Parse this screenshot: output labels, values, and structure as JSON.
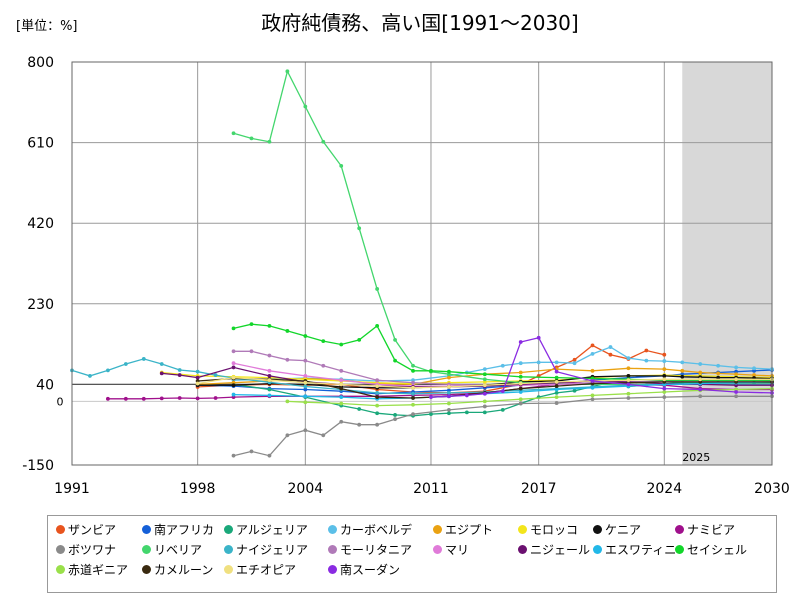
{
  "chart_data": {
    "type": "line",
    "title": "政府純債務、高い国[1991～2030]",
    "unit_label": "[単位：%]",
    "x_ticks": [
      "1991",
      "1998",
      "2004",
      "2011",
      "2017",
      "2024",
      "2030"
    ],
    "y_ticks": [
      "800",
      "610",
      "420",
      "230",
      "40",
      "-150"
    ],
    "zero_label": "0",
    "xlim": [
      1991,
      2030
    ],
    "ylim": [
      -150,
      800
    ],
    "reference_line_y": 40,
    "forecast_start": 2025,
    "forecast_label": "2025",
    "grid": true,
    "legend_position": "bottom",
    "series": [
      {
        "name": "ザンビア",
        "color": "#e8541e",
        "x": [
          1998,
          2000,
          2002,
          2004,
          2006,
          2008,
          2010,
          2012,
          2014,
          2016,
          2017,
          2018,
          2019,
          2020,
          2021,
          2022,
          2023,
          2024
        ],
        "values": [
          34,
          38,
          40,
          38,
          40,
          28,
          22,
          20,
          24,
          40,
          60,
          80,
          98,
          132,
          110,
          100,
          120,
          110
        ]
      },
      {
        "name": "南アフリカ",
        "color": "#1560d8",
        "x": [
          1998,
          2000,
          2002,
          2004,
          2006,
          2008,
          2010,
          2012,
          2014,
          2016,
          2018,
          2020,
          2022,
          2024,
          2025,
          2026,
          2027,
          2028,
          2029,
          2030
        ],
        "values": [
          38,
          36,
          30,
          28,
          24,
          18,
          22,
          26,
          32,
          38,
          42,
          50,
          56,
          60,
          64,
          66,
          68,
          70,
          72,
          74
        ]
      },
      {
        "name": "アルジェリア",
        "color": "#1aa87a",
        "x": [
          2000,
          2002,
          2004,
          2006,
          2007,
          2008,
          2009,
          2010,
          2011,
          2012,
          2013,
          2014,
          2015,
          2016,
          2017,
          2018,
          2019,
          2020,
          2021,
          2022,
          2023,
          2024,
          2025,
          2026,
          2027,
          2028,
          2029,
          2030
        ],
        "values": [
          40,
          28,
          10,
          -10,
          -18,
          -28,
          -32,
          -34,
          -30,
          -28,
          -26,
          -26,
          -20,
          -5,
          10,
          20,
          25,
          35,
          45,
          35,
          38,
          42,
          44,
          44,
          44,
          44,
          44,
          44
        ]
      },
      {
        "name": "カーボベルデ",
        "color": "#5bbfe8",
        "x": [
          2000,
          2002,
          2004,
          2006,
          2008,
          2010,
          2012,
          2013,
          2014,
          2015,
          2016,
          2017,
          2018,
          2019,
          2020,
          2021,
          2022,
          2023,
          2024,
          2025,
          2026,
          2027,
          2028,
          2029,
          2030
        ],
        "values": [
          50,
          52,
          55,
          52,
          48,
          50,
          60,
          68,
          76,
          84,
          90,
          92,
          92,
          90,
          112,
          128,
          102,
          96,
          95,
          92,
          88,
          84,
          80,
          78,
          76
        ]
      },
      {
        "name": "エジプト",
        "color": "#eaa212",
        "x": [
          1998,
          2000,
          2002,
          2004,
          2006,
          2008,
          2010,
          2012,
          2014,
          2016,
          2018,
          2020,
          2022,
          2024,
          2025,
          2026,
          2027,
          2028,
          2029,
          2030
        ],
        "values": [
          40,
          44,
          48,
          54,
          50,
          42,
          40,
          56,
          64,
          68,
          76,
          72,
          78,
          76,
          72,
          68,
          66,
          64,
          62,
          60
        ]
      },
      {
        "name": "モロッコ",
        "color": "#f3e51c",
        "x": [
          1996,
          1998,
          2000,
          2002,
          2004,
          2006,
          2008,
          2010,
          2012,
          2014,
          2016,
          2018,
          2020,
          2022,
          2024,
          2026,
          2028,
          2030
        ],
        "values": [
          68,
          60,
          58,
          56,
          52,
          48,
          44,
          42,
          44,
          46,
          48,
          50,
          56,
          60,
          62,
          60,
          58,
          56
        ]
      },
      {
        "name": "ケニア",
        "color": "#111111",
        "x": [
          1998,
          2000,
          2002,
          2004,
          2006,
          2008,
          2010,
          2012,
          2014,
          2016,
          2018,
          2020,
          2022,
          2024,
          2025,
          2026,
          2027,
          2028,
          2029,
          2030
        ],
        "values": [
          38,
          38,
          42,
          40,
          34,
          32,
          32,
          36,
          38,
          46,
          48,
          58,
          60,
          60,
          58,
          57,
          56,
          56,
          55,
          54
        ]
      },
      {
        "name": "ナミビア",
        "color": "#a0108c",
        "x": [
          1993,
          1994,
          1995,
          1996,
          1997,
          1998,
          1999,
          2000,
          2002,
          2004,
          2006,
          2008,
          2010,
          2012,
          2014,
          2016,
          2018,
          2020,
          2022,
          2024,
          2026,
          2028,
          2030
        ],
        "values": [
          6,
          6,
          6,
          7,
          8,
          7,
          8,
          10,
          12,
          12,
          12,
          12,
          14,
          16,
          20,
          30,
          40,
          50,
          40,
          38,
          30,
          28,
          28
        ]
      },
      {
        "name": "ボツワナ",
        "color": "#8a8a8a",
        "x": [
          2000,
          2001,
          2002,
          2003,
          2004,
          2005,
          2006,
          2007,
          2008,
          2009,
          2010,
          2012,
          2014,
          2016,
          2018,
          2020,
          2022,
          2024,
          2026,
          2028,
          2030
        ],
        "values": [
          -128,
          -118,
          -128,
          -80,
          -68,
          -80,
          -48,
          -55,
          -55,
          -42,
          -30,
          -20,
          -12,
          -5,
          -4,
          5,
          8,
          10,
          12,
          12,
          12
        ]
      },
      {
        "name": "リベリア",
        "color": "#43d66d",
        "x": [
          2000,
          2001,
          2002,
          2003,
          2004,
          2005,
          2006,
          2007,
          2008,
          2009,
          2010,
          2011,
          2012,
          2014,
          2016,
          2018,
          2020,
          2022,
          2024,
          2026,
          2028,
          2030
        ],
        "values": [
          632,
          620,
          612,
          778,
          695,
          612,
          555,
          408,
          265,
          145,
          84,
          70,
          64,
          52,
          44,
          42,
          40,
          40,
          40,
          40,
          40,
          40
        ]
      },
      {
        "name": "ナイジェリア",
        "color": "#3bb4c8",
        "x": [
          1991,
          1992,
          1993,
          1994,
          1995,
          1996,
          1997,
          1998,
          1999,
          2000,
          2002,
          2004,
          2006,
          2008,
          2010,
          2012,
          2014,
          2016,
          2018,
          2020,
          2022,
          2024,
          2026,
          2028,
          2030
        ],
        "values": [
          73,
          60,
          73,
          88,
          100,
          88,
          74,
          70,
          62,
          55,
          45,
          35,
          28,
          20,
          18,
          20,
          22,
          26,
          30,
          34,
          38,
          40,
          40,
          40,
          40
        ]
      },
      {
        "name": "モーリタニア",
        "color": "#b07ab8",
        "x": [
          2000,
          2001,
          2002,
          2003,
          2004,
          2005,
          2006,
          2008,
          2010,
          2012,
          2014,
          2016,
          2018,
          2020,
          2022,
          2024,
          2026,
          2028,
          2030
        ],
        "values": [
          118,
          118,
          108,
          98,
          96,
          84,
          72,
          50,
          44,
          40,
          38,
          38,
          40,
          44,
          46,
          48,
          50,
          50,
          50
        ]
      },
      {
        "name": "マリ",
        "color": "#e07bd9",
        "x": [
          2000,
          2002,
          2004,
          2006,
          2008,
          2010,
          2012,
          2014,
          2016,
          2018,
          2020,
          2022,
          2024,
          2026,
          2028,
          2030
        ],
        "values": [
          90,
          72,
          60,
          50,
          40,
          36,
          36,
          38,
          38,
          40,
          42,
          44,
          46,
          46,
          46,
          46
        ]
      },
      {
        "name": "ニジェール",
        "color": "#6b1070",
        "x": [
          1996,
          1997,
          1998,
          2000,
          2002,
          2004,
          2006,
          2008,
          2010,
          2012,
          2014,
          2016,
          2018,
          2020,
          2022,
          2024,
          2026,
          2028,
          2030
        ],
        "values": [
          66,
          62,
          56,
          80,
          60,
          46,
          40,
          36,
          34,
          34,
          36,
          40,
          44,
          48,
          46,
          42,
          40,
          38,
          38
        ]
      },
      {
        "name": "エスワティニ",
        "color": "#22b8e8",
        "x": [
          2000,
          2002,
          2004,
          2006,
          2008,
          2010,
          2012,
          2014,
          2016,
          2018,
          2020,
          2022,
          2024,
          2026,
          2028,
          2030
        ],
        "values": [
          16,
          14,
          12,
          10,
          6,
          8,
          12,
          18,
          22,
          28,
          32,
          36,
          40,
          42,
          44,
          46
        ]
      },
      {
        "name": "セイシェル",
        "color": "#12d62a",
        "x": [
          2000,
          2001,
          2002,
          2003,
          2004,
          2005,
          2006,
          2007,
          2008,
          2009,
          2010,
          2011,
          2012,
          2014,
          2016,
          2018,
          2020,
          2022,
          2024,
          2026,
          2028,
          2030
        ],
        "values": [
          172,
          182,
          178,
          166,
          154,
          142,
          134,
          145,
          178,
          96,
          72,
          72,
          70,
          64,
          58,
          56,
          54,
          52,
          50,
          50,
          50,
          50
        ]
      },
      {
        "name": "赤道ギニア",
        "color": "#9ae04a",
        "x": [
          2003,
          2004,
          2006,
          2008,
          2010,
          2012,
          2014,
          2016,
          2018,
          2020,
          2022,
          2024,
          2026,
          2028,
          2030
        ],
        "values": [
          0,
          -2,
          -5,
          -10,
          -8,
          -5,
          0,
          5,
          10,
          14,
          18,
          22,
          26,
          28,
          30
        ]
      },
      {
        "name": "カメルーン",
        "color": "#3a2a10",
        "x": [
          1998,
          2000,
          2002,
          2004,
          2006,
          2008,
          2010,
          2012,
          2014,
          2016,
          2018,
          2020,
          2022,
          2024,
          2026,
          2028,
          2030
        ],
        "values": [
          48,
          54,
          52,
          48,
          30,
          10,
          8,
          12,
          20,
          30,
          36,
          42,
          44,
          46,
          46,
          46,
          46
        ]
      },
      {
        "name": "エチオピア",
        "color": "#f0e080",
        "x": [
          1998,
          2000,
          2002,
          2004,
          2006,
          2008,
          2010,
          2012,
          2014,
          2016,
          2018,
          2020,
          2022,
          2024,
          2026,
          2028,
          2030
        ],
        "values": [
          42,
          56,
          50,
          44,
          40,
          36,
          32,
          34,
          38,
          42,
          46,
          48,
          50,
          52,
          52,
          52,
          52
        ]
      },
      {
        "name": "南スーダン",
        "color": "#8a2be2",
        "x": [
          2011,
          2012,
          2013,
          2014,
          2015,
          2016,
          2017,
          2018,
          2020,
          2022,
          2024,
          2026,
          2028,
          2030
        ],
        "values": [
          10,
          12,
          14,
          18,
          24,
          140,
          150,
          70,
          48,
          40,
          30,
          28,
          22,
          20
        ]
      }
    ]
  }
}
